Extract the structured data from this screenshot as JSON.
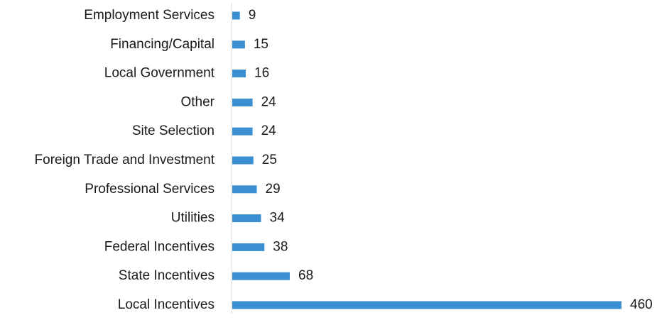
{
  "chart_data": {
    "type": "bar",
    "orientation": "horizontal",
    "title": "",
    "xlabel": "",
    "ylabel": "",
    "categories": [
      "Employment Services",
      "Financing/Capital",
      "Local Government",
      "Other",
      "Site Selection",
      "Foreign Trade and Investment",
      "Professional Services",
      "Utilities",
      "Federal Incentives",
      "State Incentives",
      "Local Incentives"
    ],
    "values": [
      9,
      15,
      16,
      24,
      24,
      25,
      29,
      34,
      38,
      68,
      460
    ],
    "xlim": [
      0,
      460
    ],
    "grid": false,
    "legend": "none",
    "data_labels": true,
    "colors": {
      "bar": "#3a8fd0",
      "axis": "#d9d9d9",
      "text": "#1a1a1a"
    }
  }
}
